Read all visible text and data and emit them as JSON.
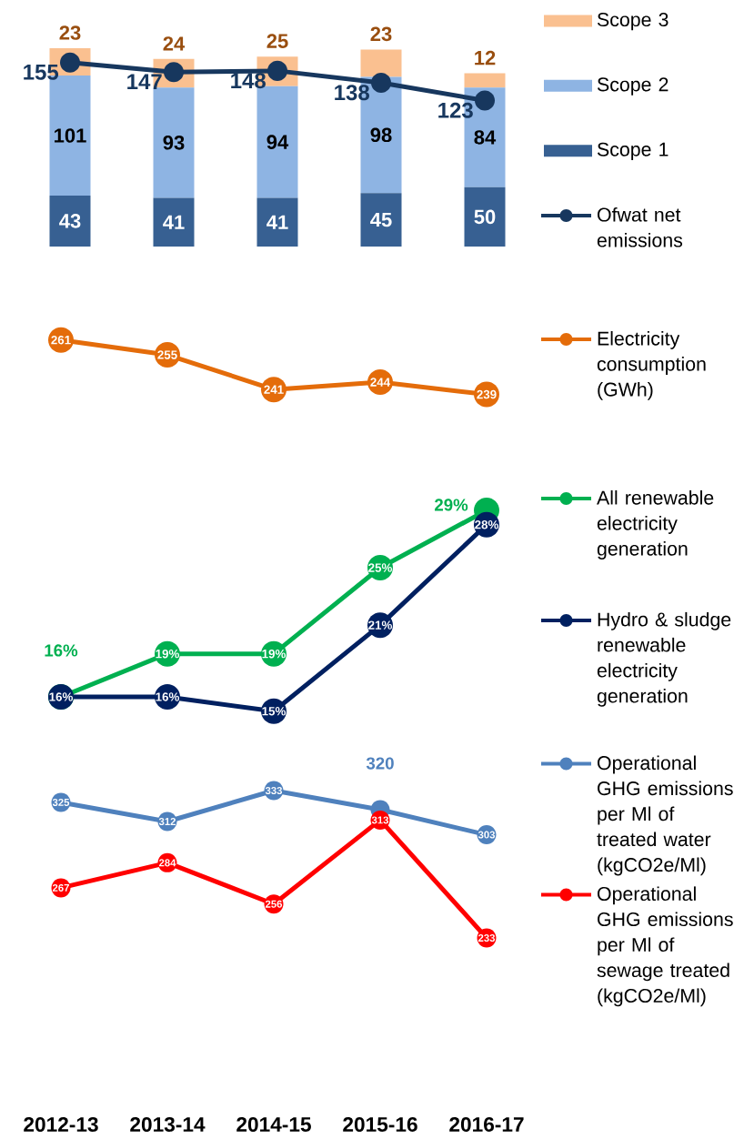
{
  "chart_data": [
    {
      "type": "bar",
      "stacked": true,
      "categories": [
        "2012-13",
        "2013-14",
        "2014-15",
        "2015-16",
        "2016-17"
      ],
      "series": [
        {
          "name": "Scope 1",
          "color": "#376092",
          "values": [
            43,
            41,
            41,
            45,
            50
          ]
        },
        {
          "name": "Scope 2",
          "color": "#8eb4e3",
          "values": [
            101,
            93,
            94,
            98,
            84
          ]
        },
        {
          "name": "Scope 3",
          "color": "#fac090",
          "values": [
            23,
            24,
            25,
            23,
            12
          ]
        },
        {
          "name": "Ofwat net emissions",
          "type": "line",
          "color": "#17375e",
          "values": [
            155,
            147,
            148,
            138,
            123
          ]
        }
      ],
      "marker": "circle",
      "data_labels": true,
      "legend": "right",
      "tick_labels": false
    },
    {
      "type": "line",
      "categories": [
        "2012-13",
        "2013-14",
        "2014-15",
        "2015-16",
        "2016-17"
      ],
      "series": [
        {
          "name": "Electricity consumption (GWh)",
          "color": "#e46c0a",
          "values": [
            261,
            255,
            241,
            244,
            239
          ]
        }
      ],
      "marker": "circle",
      "data_labels": true,
      "legend": "right",
      "tick_labels": false
    },
    {
      "type": "line",
      "categories": [
        "2012-13",
        "2013-14",
        "2014-15",
        "2015-16",
        "2016-17"
      ],
      "series": [
        {
          "name": "All renewable electricity generation",
          "color": "#00b050",
          "values": [
            16,
            19,
            19,
            25,
            29
          ],
          "value_labels": [
            "16%",
            "19%",
            "19%",
            "25%",
            "29%"
          ]
        },
        {
          "name": "Hydro & sludge renewable electricity generation",
          "color": "#002060",
          "values": [
            16,
            16,
            15,
            21,
            28
          ],
          "value_labels": [
            "16%",
            "16%",
            "15%",
            "21%",
            "28%"
          ]
        }
      ],
      "marker": "circle",
      "legend": "right",
      "tick_labels": false
    },
    {
      "type": "line",
      "categories": [
        "2012-13",
        "2013-14",
        "2014-15",
        "2015-16",
        "2016-17"
      ],
      "series": [
        {
          "name": "Operational GHG emissions per Ml of treated water (kgCO2e/Ml)",
          "color": "#4f81bd",
          "values": [
            325,
            312,
            333,
            320,
            303
          ]
        },
        {
          "name": "Operational GHG emissions per Ml of sewage treated (kgCO2e/Ml)",
          "color": "#ff0000",
          "values": [
            267,
            284,
            256,
            313,
            233
          ]
        }
      ],
      "marker": "circle",
      "data_labels": true,
      "legend": "right",
      "tick_labels": "x"
    }
  ]
}
